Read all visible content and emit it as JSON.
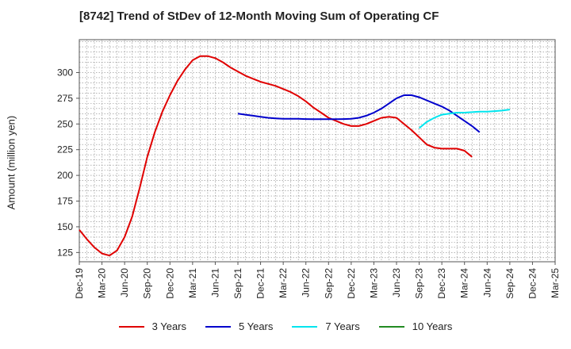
{
  "chart_data": {
    "type": "line",
    "title": "[8742]  Trend of StDev of 12-Month Moving Sum of Operating CF",
    "ylabel": "Amount (million yen)",
    "xlabel": "",
    "ylim": [
      116,
      332
    ],
    "yticks": [
      125,
      150,
      175,
      200,
      225,
      250,
      275,
      300
    ],
    "x_tick_labels": [
      "Dec-19",
      "Mar-20",
      "Jun-20",
      "Sep-20",
      "Dec-20",
      "Mar-21",
      "Jun-21",
      "Sep-21",
      "Dec-21",
      "Mar-22",
      "Jun-22",
      "Sep-22",
      "Dec-22",
      "Mar-23",
      "Jun-23",
      "Sep-23",
      "Dec-23",
      "Mar-24",
      "Jun-24",
      "Sep-24",
      "Dec-24",
      "Mar-25"
    ],
    "grid": true,
    "legend_position": "bottom",
    "series": [
      {
        "name": "3 Years",
        "color": "#e00000",
        "start_index": 0,
        "values": [
          147,
          138,
          130,
          124,
          122,
          127,
          140,
          160,
          188,
          218,
          242,
          262,
          278,
          292,
          303,
          312,
          316,
          316,
          314,
          310,
          305,
          301,
          297,
          294,
          291,
          289,
          287,
          284,
          281,
          277,
          272,
          266,
          261,
          256,
          253,
          250,
          248,
          248,
          250,
          253,
          256,
          257,
          256,
          250,
          244,
          237,
          230,
          227,
          226,
          226,
          226,
          224,
          218
        ]
      },
      {
        "name": "5 Years",
        "color": "#0000cc",
        "start_index": 21,
        "values": [
          260,
          259,
          258,
          257,
          256,
          255.5,
          255,
          255,
          255,
          254.8,
          254.6,
          254.6,
          254.6,
          254.6,
          254.8,
          255,
          256,
          258,
          261,
          265,
          270,
          275,
          278,
          278,
          276,
          273,
          270,
          267,
          263,
          258,
          253,
          248,
          242
        ]
      },
      {
        "name": "7 Years",
        "color": "#00e5ee",
        "start_index": 45,
        "values": [
          246,
          252,
          256,
          259,
          260,
          261,
          261,
          261.5,
          262,
          262,
          262.5,
          263,
          264
        ]
      },
      {
        "name": "10 Years",
        "color": "#228b22",
        "start_index": 0,
        "values": []
      }
    ]
  }
}
